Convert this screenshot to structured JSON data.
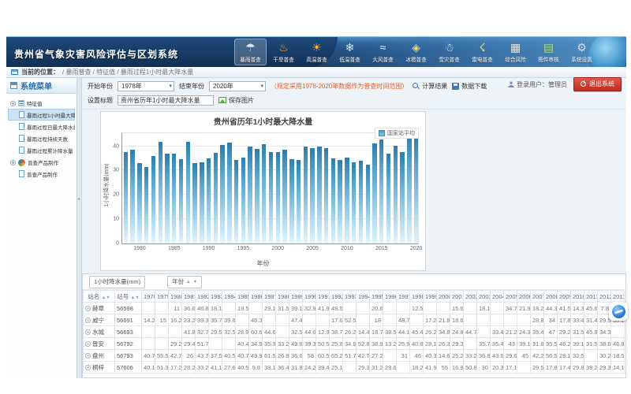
{
  "app": {
    "title": "贵州省气象灾害风险评估与区划系统",
    "user": "登录用户：管理员",
    "logout": "退出系统"
  },
  "nav": {
    "items": [
      {
        "label": "暴雨普查",
        "icon": "rainstorm",
        "active": true
      },
      {
        "label": "干旱普查",
        "icon": "drought",
        "active": false
      },
      {
        "label": "高温普查",
        "icon": "high-temp",
        "active": false
      },
      {
        "label": "低温普查",
        "icon": "low-temp",
        "active": false
      },
      {
        "label": "大风普查",
        "icon": "wind",
        "active": false
      },
      {
        "label": "冰雹普查",
        "icon": "hail",
        "active": false
      },
      {
        "label": "雪灾普查",
        "icon": "snow",
        "active": false
      },
      {
        "label": "雷电普查",
        "icon": "lightning",
        "active": false
      },
      {
        "label": "综合风险",
        "icon": "risk",
        "active": false
      },
      {
        "label": "图件审核",
        "icon": "map-review",
        "active": false
      },
      {
        "label": "系统设置",
        "icon": "settings",
        "active": false
      }
    ]
  },
  "breadcrumb": {
    "label": "当前的位置：",
    "path": "/ 暴雨普查 / 特征值 / 暴雨过程1小时最大降水量"
  },
  "sidebar": {
    "title": "系统菜单",
    "groups": [
      {
        "label": "特征值",
        "icon": "list",
        "items": [
          {
            "label": "暴雨过程1小时最大降水量",
            "selected": true
          },
          {
            "label": "暴雨过程日最大降水量",
            "selected": false
          },
          {
            "label": "暴雨过程持续天数",
            "selected": false
          },
          {
            "label": "暴雨过程累计降水量",
            "selected": false
          }
        ]
      },
      {
        "label": "普查产品制作",
        "icon": "pie",
        "items": [
          {
            "label": "普查产品制作",
            "selected": false
          }
        ]
      }
    ]
  },
  "toolbar": {
    "start_year_label": "开始年份",
    "start_year_value": "1978年",
    "end_year_label": "结束年份",
    "end_year_value": "2020年",
    "note": "（规定采用1978-2020年数据作为普查时间范围）",
    "calc_button": "计算结果",
    "download_button": "数据下载",
    "title_label": "设置标题",
    "title_value": "贵州省历年1小时最大降水量",
    "save_image_button": "保存图片"
  },
  "chart_data": {
    "type": "bar",
    "title": "贵州省历年1小时最大降水量",
    "legend": [
      "国家站平均"
    ],
    "legend_position": "top-right",
    "xlabel": "年份",
    "ylabel": "1小时降水量(mm)",
    "ylim": [
      0,
      46
    ],
    "yticks": [
      0,
      10,
      20,
      30,
      40
    ],
    "xticks": [
      1980,
      1985,
      1990,
      1995,
      2000,
      2005,
      2010,
      2015,
      2020
    ],
    "x_start": 1978,
    "grid": true,
    "series": [
      {
        "name": "国家站平均",
        "values": [
          37.6,
          38.4,
          33.2,
          31.5,
          35.9,
          41.8,
          37.0,
          36.9,
          34.8,
          41.9,
          33.2,
          33.5,
          35.0,
          37.4,
          40.5,
          41.5,
          34.2,
          35.2,
          40.0,
          38.9,
          40.7,
          37.5,
          37.7,
          38.7,
          34.7,
          34.5,
          40.0,
          39.1,
          39.7,
          39.1,
          35.1,
          34.2,
          35.4,
          33.4,
          33.9,
          32.4,
          41.1,
          42.9,
          36.9,
          40.2,
          37.6,
          44.9,
          44.1
        ]
      }
    ],
    "bar_color_top": "#2c7dac",
    "bar_color_bottom": "#e0f4fd"
  },
  "table": {
    "measure_label": "1小时降水量(mm)",
    "year_sort_label": "年份",
    "columns": {
      "name": "站名",
      "id": "站号"
    },
    "years": [
      1978,
      1979,
      1980,
      1981,
      1982,
      1983,
      1984,
      1985,
      1986,
      1987,
      1988,
      1989,
      1990,
      1991,
      1992,
      1993,
      1994,
      1995,
      1996,
      1997,
      1998,
      1999,
      2000,
      2001,
      2002,
      2003,
      2004,
      2005,
      2006,
      2007,
      2008,
      2009,
      2010,
      2011,
      2012,
      2013,
      2014
    ],
    "rows": [
      {
        "name": "赫章",
        "id": "56598",
        "values": [
          "",
          "",
          "11",
          "36.6",
          "46.8",
          "18.1",
          "",
          "19.5",
          "",
          "29.1",
          "31.5",
          "39.1",
          "32.9",
          "41.9",
          "49.5",
          "",
          "",
          "20.6",
          "",
          "",
          "12.5",
          "",
          "",
          "15.6",
          "",
          "18.1",
          "",
          "34.7",
          "21.9",
          "18.2",
          "44.3",
          "41.5",
          "14.3",
          "45.6",
          "7.8",
          "15.3",
          "2"
        ]
      },
      {
        "name": "威宁",
        "id": "56691",
        "values": [
          "14.2",
          "15",
          "16.2",
          "23.2",
          "39.3",
          "35.7",
          "39.6",
          "",
          "46.3",
          "",
          "",
          "47.4",
          "",
          "",
          "17.6",
          "52.5",
          "",
          "18",
          "",
          "48.7",
          "",
          "17.2",
          "21.8",
          "18.6",
          "",
          "",
          "",
          "",
          "",
          "28.8",
          "34",
          "17.8",
          "33.4",
          "31.4",
          "29.5",
          "35.1",
          ""
        ]
      },
      {
        "name": "水城",
        "id": "56693",
        "values": [
          "",
          "",
          "",
          "41.8",
          "32.7",
          "29.5",
          "32.5",
          "28.9",
          "60.6",
          "44.6",
          "",
          "32.5",
          "44.6",
          "12.9",
          "38.7",
          "26.2",
          "14.4",
          "18.7",
          "38.5",
          "44.1",
          "45.4",
          "26.2",
          "34.8",
          "24.8",
          "44.7",
          "",
          "33.4",
          "21.2",
          "24.3",
          "35.4",
          "47",
          "29.2",
          "31.5",
          "45.8",
          "34.3",
          "",
          "31.9"
        ]
      },
      {
        "name": "普安",
        "id": "56792",
        "values": [
          "",
          "",
          "29.2",
          "29.4",
          "51.7",
          "",
          "",
          "40.4",
          "34.9",
          "35.3",
          "33.2",
          "49.6",
          "39.3",
          "50.5",
          "25.8",
          "34.6",
          "52.8",
          "38.9",
          "13.2",
          "25.9",
          "40.8",
          "28.1",
          "26.3",
          "29.3",
          "",
          "35.7",
          "35.4",
          "43",
          "39.1",
          "31.8",
          "35.5",
          "46.2",
          "39.1",
          "31.5",
          "38.6",
          "46.8",
          "31.1"
        ]
      },
      {
        "name": "盘州",
        "id": "56793",
        "values": [
          "40.7",
          "55.5",
          "42.7",
          "26",
          "43.7",
          "37.5",
          "40.5",
          "40.7",
          "49.9",
          "61.5",
          "26.9",
          "36.6",
          "58",
          "60.5",
          "65.2",
          "51.7",
          "42.7",
          "27.2",
          "",
          "31",
          "46",
          "40.3",
          "14.6",
          "25.2",
          "33.2",
          "36.8",
          "43.6",
          "29.6",
          "45",
          "42.2",
          "56.5",
          "28.1",
          "32.5",
          "",
          "30.2",
          "18.5",
          "35.8"
        ]
      },
      {
        "name": "桐梓",
        "id": "57606",
        "values": [
          "40.1",
          "51.3",
          "17.2",
          "28.2",
          "33.2",
          "41.1",
          "27.6",
          "40.5",
          "9.8",
          "33.1",
          "36.4",
          "31.8",
          "24.2",
          "39.4",
          "25.1",
          "",
          "29.3",
          "31.2",
          "23.6",
          "",
          "18.2",
          "41.9",
          "55",
          "16.9",
          "50.8",
          "30",
          "20.3",
          "17.1",
          "",
          "29.5",
          "17.8",
          "17.4",
          "29.8",
          "39.2",
          "29.3",
          "14.1",
          "42.1"
        ]
      }
    ]
  },
  "floating_button": {
    "icon": "blue-swirl-plugin"
  }
}
